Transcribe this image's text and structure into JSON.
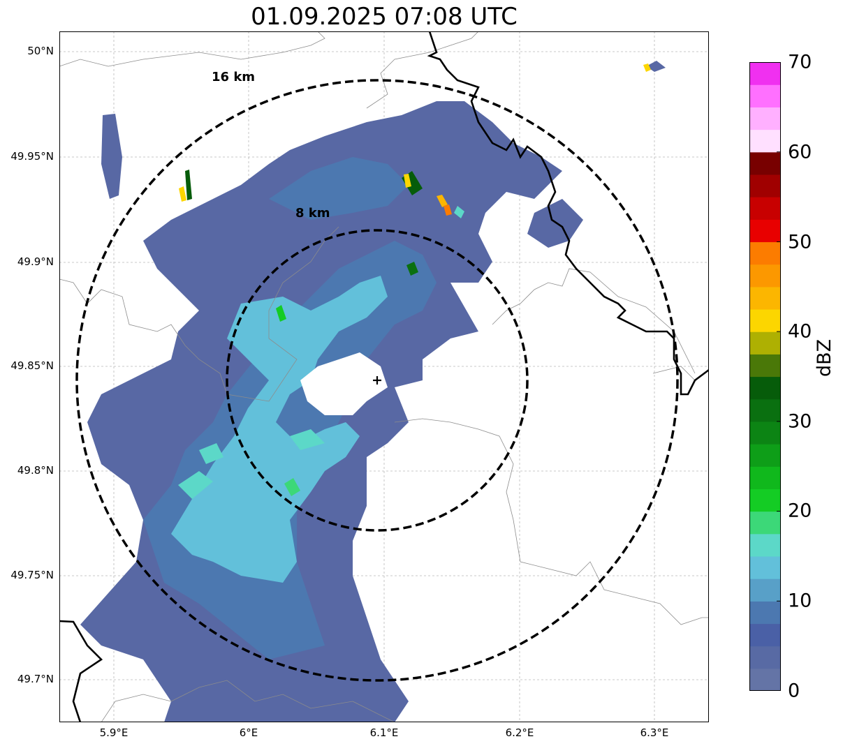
{
  "title": "01.09.2025 07:08 UTC",
  "map": {
    "latitude_labels": [
      "50°N",
      "49.95°N",
      "49.9°N",
      "49.85°N",
      "49.8°N",
      "49.75°N",
      "49.7°N"
    ],
    "longitude_labels": [
      "5.9°E",
      "6°E",
      "6.1°E",
      "6.2°E",
      "6.3°E"
    ],
    "range_rings": [
      {
        "label": "16 km",
        "radius_km": 16
      },
      {
        "label": "8 km",
        "radius_km": 8
      }
    ],
    "radar_site": {
      "lat": 49.843,
      "lon": 6.094,
      "symbol": "+"
    },
    "gridlines": true
  },
  "colorbar": {
    "unit": "dBZ",
    "tick_labels": [
      "70",
      "60",
      "50",
      "40",
      "30",
      "20",
      "10",
      "0"
    ],
    "range": [
      0,
      70
    ],
    "colors": [
      "#6474a6",
      "#586aa4",
      "#4a60a6",
      "#4c78b0",
      "#58a0c8",
      "#62c0da",
      "#5cd8c8",
      "#3cd878",
      "#14cc24",
      "#10b81c",
      "#0e9e18",
      "#0c8414",
      "#0a7010",
      "#065c0a",
      "#4a7808",
      "#aeb002",
      "#fcd600",
      "#fcb600",
      "#fc9800",
      "#fc7c00",
      "#e80000",
      "#c80000",
      "#a00000",
      "#780000",
      "#ffe0ff",
      "#ffb0ff",
      "#ff70ff",
      "#f030f0"
    ]
  },
  "reflectivity_field": {
    "description_colors": {
      "weak": "#5868a4",
      "light": "#4c78b0",
      "moderate": "#62c0da",
      "cyan": "#5cd8c8",
      "green": "#14cc24",
      "darkgreen": "#065c0a",
      "yellow": "#fcd600",
      "orange": "#fc7c00"
    }
  }
}
